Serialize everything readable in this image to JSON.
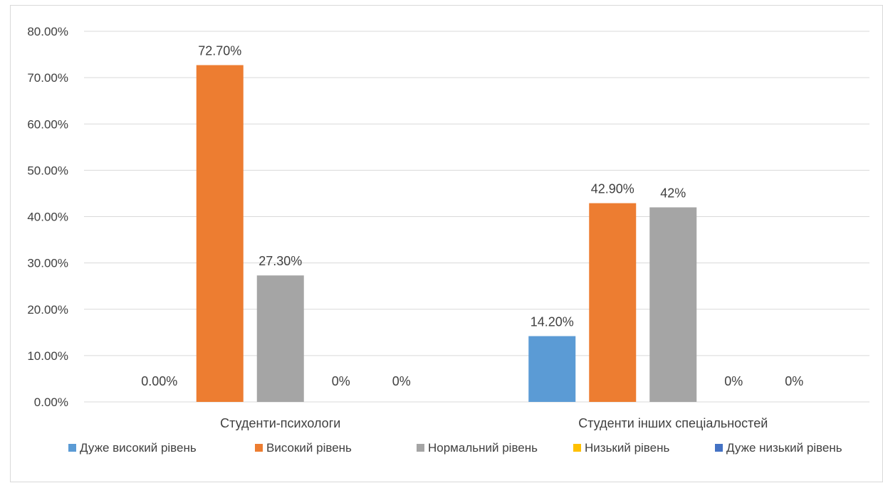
{
  "chart_data": {
    "type": "bar",
    "categories": [
      "Студенти-психологи",
      "Студенти інших спеціальностей"
    ],
    "series": [
      {
        "name": "Дуже високий рівень",
        "values": [
          0,
          14.2
        ],
        "labels": [
          "0.00%",
          "14.20%"
        ],
        "color": "#5B9BD5"
      },
      {
        "name": "Високий рівень",
        "values": [
          72.7,
          42.9
        ],
        "labels": [
          "72.70%",
          "42.90%"
        ],
        "color": "#ED7D31"
      },
      {
        "name": "Нормальний рівень",
        "values": [
          27.3,
          42
        ],
        "labels": [
          "27.30%",
          "42%"
        ],
        "color": "#A5A5A5"
      },
      {
        "name": "Низький рівень",
        "values": [
          0,
          0
        ],
        "labels": [
          "0%",
          "0%"
        ],
        "color": "#FFC000"
      },
      {
        "name": "Дуже низький рівень",
        "values": [
          0,
          0
        ],
        "labels": [
          "0%",
          "0%"
        ],
        "color": "#4472C4"
      }
    ],
    "yticks": [
      "0.00%",
      "10.00%",
      "20.00%",
      "30.00%",
      "40.00%",
      "50.00%",
      "60.00%",
      "70.00%",
      "80.00%"
    ],
    "ylim": [
      0,
      80
    ],
    "grid": true,
    "legend": "bottom",
    "title": "",
    "xlabel": "",
    "ylabel": ""
  }
}
